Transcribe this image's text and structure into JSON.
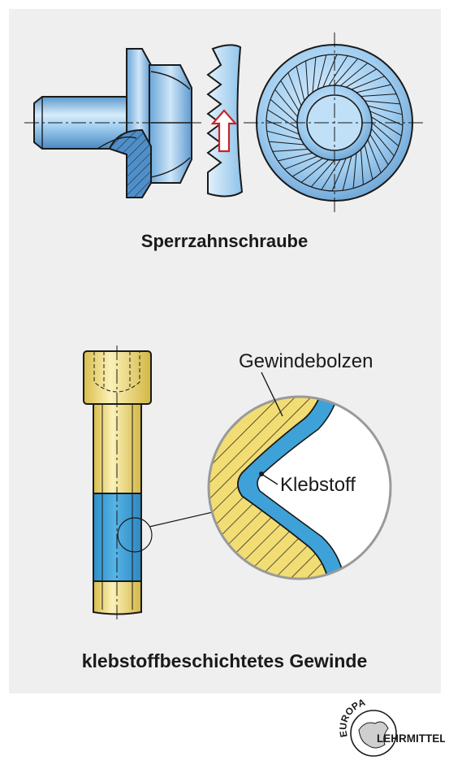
{
  "captions": {
    "top": "Sperrzahnschraube",
    "bottom": "klebstoffbeschichtetes Gewinde"
  },
  "labels": {
    "bolt": "Gewindebolzen",
    "adhesive": "Klebstoff"
  },
  "logo": {
    "line1": "EUROPA",
    "line2": "LEHRMITTEL"
  },
  "colors": {
    "metal_blue": "#7fb8e4",
    "brass_yellow": "#f1dd73",
    "adhesive_blue": "#3ea2d8",
    "arrow_red": "#c8242b",
    "panel_gray": "#efefef"
  }
}
